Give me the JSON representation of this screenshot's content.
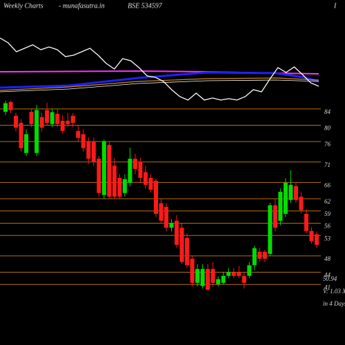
{
  "header": {
    "left": "Weekly Charts",
    "site": "- munafasutra.in",
    "symbol": "BSE 534597",
    "right": "I"
  },
  "chart_data": [
    {
      "type": "line",
      "series": [
        {
          "color": "#ffffff",
          "values": [
            95,
            88,
            75,
            80,
            85,
            78,
            82,
            78,
            68,
            70,
            75,
            80,
            70,
            58,
            50,
            65,
            62,
            52,
            40,
            38,
            32,
            20,
            10,
            5,
            15,
            5,
            8,
            5,
            7,
            5,
            10,
            20,
            17,
            35,
            52,
            45,
            53,
            42,
            30,
            25
          ]
        }
      ],
      "ylim": [
        0,
        110
      ]
    },
    {
      "type": "candlestick",
      "up_color": "#00dd00",
      "down_color": "#ff1a1a",
      "grid_color": "#b8720a",
      "open": [
        83.3,
        85.7,
        82.3,
        80.6,
        73.2,
        83.3,
        73.2,
        82,
        83.7,
        80.3,
        82.8,
        81.1,
        81.1,
        82.3,
        78.6,
        77.8,
        76.1,
        76.1,
        71.8,
        62.9,
        75.2,
        70.1,
        67.1,
        63.4,
        65.9,
        71.8,
        71,
        68.5,
        67.1,
        66.4,
        60.9,
        60,
        54.9,
        56.6,
        54.9,
        52.4,
        47.3,
        41.4,
        40.6,
        44.8,
        44.8,
        41.1,
        41.4,
        43.1,
        44,
        44,
        43.1,
        43.1,
        45.7,
        49,
        49,
        48.5,
        60.4,
        56.6,
        58.3,
        61.7,
        65.1,
        62.5,
        58.3,
        54.1,
        53.3
      ],
      "high": [
        86,
        86,
        83,
        81.5,
        79,
        84,
        85,
        83,
        85.5,
        84,
        84,
        82.5,
        83,
        83,
        80,
        79,
        77,
        77,
        72.5,
        76.5,
        76,
        72,
        68,
        68,
        74.5,
        73,
        72,
        70,
        68,
        67,
        62,
        61,
        57,
        58,
        56,
        53.5,
        48,
        46,
        46,
        46,
        46.5,
        43,
        44,
        45,
        45,
        45.5,
        44,
        46.5,
        50.5,
        50,
        49.5,
        61,
        62,
        64.5,
        67,
        69,
        66,
        63.5,
        59.5,
        55,
        54
      ],
      "low": [
        82.5,
        83,
        78.5,
        73.5,
        72.5,
        79.5,
        72.5,
        78.5,
        80,
        79.5,
        79.5,
        78,
        79.5,
        79.5,
        76,
        73.5,
        70.5,
        70,
        62.5,
        62,
        62,
        62,
        62,
        62.5,
        65,
        68,
        66,
        64.5,
        63.5,
        57.5,
        56,
        54,
        54,
        50,
        46,
        45,
        40.5,
        40.5,
        40,
        39.5,
        40.5,
        40.5,
        41,
        42.5,
        42.5,
        42.5,
        40,
        42.5,
        44.5,
        46.5,
        46.5,
        48,
        54,
        55.5,
        57.5,
        61,
        61,
        58.5,
        53.5,
        51,
        50
      ],
      "close": [
        85.4,
        83.7,
        79.4,
        74.4,
        77.8,
        80.3,
        83.7,
        79.4,
        80.6,
        83.2,
        80.3,
        78.6,
        80.3,
        80.6,
        76.9,
        74.4,
        71.8,
        71,
        63.4,
        76.1,
        62.5,
        62.5,
        62.5,
        66.8,
        71.8,
        69.3,
        67.1,
        65.4,
        64.2,
        58.3,
        56.6,
        54.9,
        56.1,
        50.7,
        46.5,
        45.7,
        41.4,
        44.8,
        44.8,
        39.7,
        41.4,
        42.3,
        43.1,
        44,
        43.1,
        43.1,
        41.4,
        45.7,
        49.9,
        47.3,
        47.3,
        60.4,
        54.9,
        63.7,
        65.9,
        65.4,
        61.7,
        59.2,
        54.1,
        51.6,
        50.7
      ],
      "ylim": [
        38,
        86
      ],
      "yticks": [
        84,
        80,
        76,
        71,
        66,
        62,
        59,
        56,
        53,
        48,
        44,
        41
      ],
      "annotations": [
        "50.94",
        "V: 1.03 X",
        "in 4 Days"
      ]
    }
  ]
}
